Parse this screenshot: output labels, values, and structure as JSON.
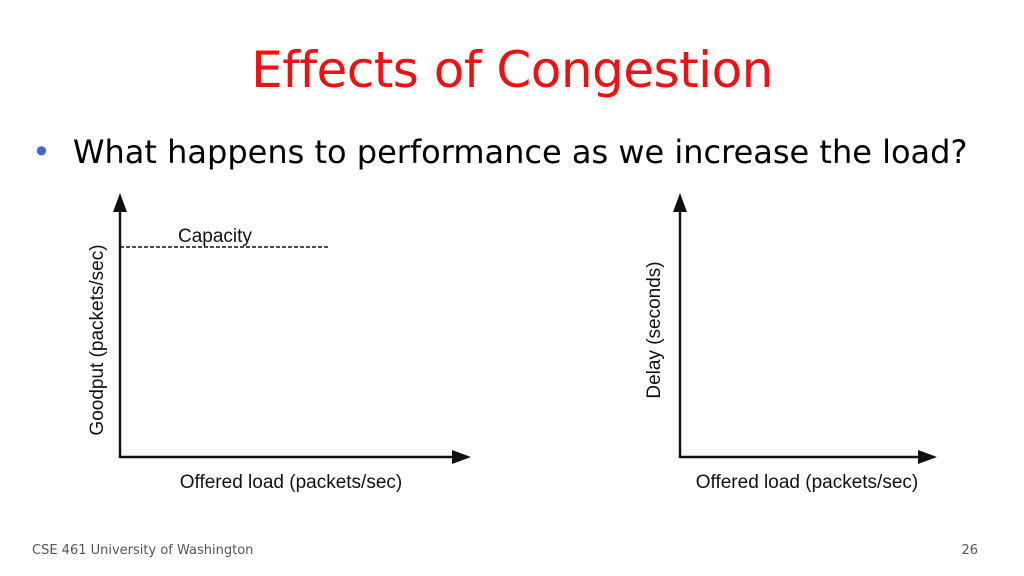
{
  "slide": {
    "title": "Effects of Congestion",
    "bullets": [
      "What happens to performance as we increase the load?"
    ],
    "footer": {
      "course": "CSE 461 University of Washington",
      "page_number": "26"
    }
  },
  "colors": {
    "title": "#ee1111",
    "bullet": "#3a6fc4",
    "text": "#000000",
    "footer": "#555555"
  },
  "graphs": {
    "goodput": {
      "ylabel": "Goodput (packets/sec)",
      "xlabel": "Offered load (packets/sec)",
      "capacity_label": "Capacity"
    },
    "delay": {
      "ylabel": "Delay (seconds)",
      "xlabel": "Offered load (packets/sec)"
    }
  }
}
